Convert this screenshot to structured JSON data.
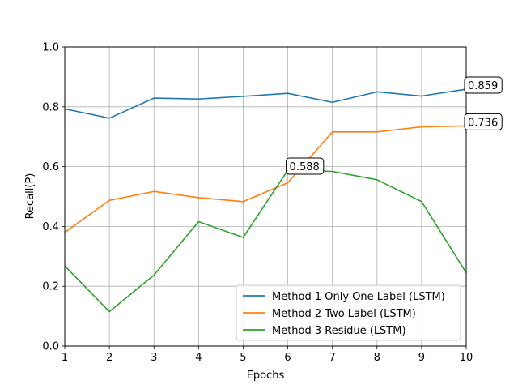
{
  "chart_data": {
    "type": "line",
    "title": "",
    "xlabel": "Epochs",
    "ylabel": "Recall(P)",
    "xlim": [
      1,
      10
    ],
    "ylim": [
      0.0,
      1.0
    ],
    "xticks": [
      "1",
      "2",
      "3",
      "4",
      "5",
      "6",
      "7",
      "8",
      "9",
      "10"
    ],
    "yticks": [
      "0.0",
      "0.2",
      "0.4",
      "0.6",
      "0.8",
      "1.0"
    ],
    "grid": true,
    "legend_position": "lower-right",
    "x": [
      1,
      2,
      3,
      4,
      5,
      6,
      7,
      8,
      9,
      10
    ],
    "series": [
      {
        "name": "Method 1 Only One Label (LSTM)",
        "color": "#1f77b4",
        "values": [
          0.793,
          0.762,
          0.829,
          0.826,
          0.835,
          0.845,
          0.815,
          0.85,
          0.836,
          0.859
        ]
      },
      {
        "name": "Method 2 Two Label (LSTM)",
        "color": "#ff7f0e",
        "values": [
          0.38,
          0.487,
          0.517,
          0.496,
          0.483,
          0.546,
          0.716,
          0.716,
          0.733,
          0.736
        ]
      },
      {
        "name": "Method 3 Residue (LSTM)",
        "color": "#2ca02c",
        "values": [
          0.268,
          0.115,
          0.237,
          0.416,
          0.363,
          0.588,
          0.584,
          0.556,
          0.483,
          0.245
        ]
      }
    ],
    "annotations": [
      {
        "text": "0.859",
        "series": 0,
        "x": 10
      },
      {
        "text": "0.736",
        "series": 1,
        "x": 10
      },
      {
        "text": "0.588",
        "series": 2,
        "x": 6
      }
    ]
  }
}
